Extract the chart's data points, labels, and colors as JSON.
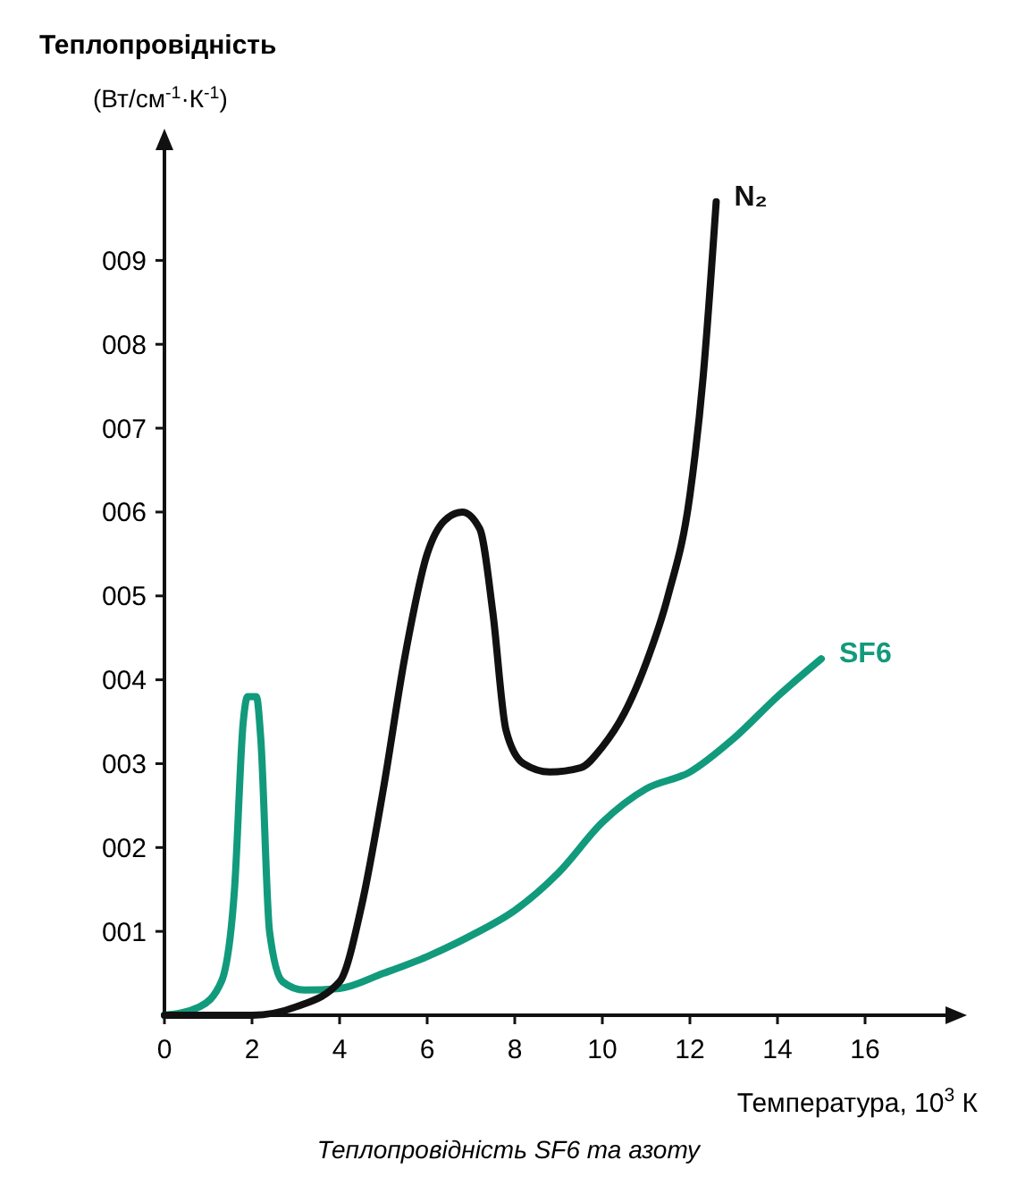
{
  "chart_data": {
    "type": "line",
    "title": "Теплопровідність",
    "ylabel": "(Вт/см$^{-1}$·К$^{-1}$)",
    "xlabel": "Температура, 10$^{3}$ К",
    "annotations": [
      "Теплопровідність SF6 та азоту"
    ],
    "xlim": [
      0,
      18
    ],
    "ylim": [
      0,
      10.4
    ],
    "xticks": [
      0,
      2,
      4,
      6,
      8,
      10,
      12,
      14,
      16
    ],
    "yticks": [
      {
        "value": 1,
        "label": "001"
      },
      {
        "value": 2,
        "label": "002"
      },
      {
        "value": 3,
        "label": "003"
      },
      {
        "value": 4,
        "label": "004"
      },
      {
        "value": 5,
        "label": "005"
      },
      {
        "value": 6,
        "label": "006"
      },
      {
        "value": 7,
        "label": "007"
      },
      {
        "value": 8,
        "label": "008"
      },
      {
        "value": 9,
        "label": "009"
      }
    ],
    "grid": false,
    "marker": "none",
    "line_style": "solid",
    "series": [
      {
        "name": "SF6",
        "color": "#129a7c",
        "x": [
          0,
          0.8,
          1.3,
          1.6,
          1.8,
          1.9,
          2.1,
          2.2,
          2.4,
          2.7,
          3.2,
          4,
          5,
          6,
          7,
          8,
          9,
          10,
          11,
          12,
          13,
          14,
          15
        ],
        "values": [
          0,
          0.1,
          0.4,
          1.5,
          3.5,
          3.8,
          3.8,
          3.3,
          1,
          0.4,
          0.3,
          0.32,
          0.5,
          0.7,
          0.95,
          1.25,
          1.7,
          2.3,
          2.7,
          2.9,
          3.3,
          3.8,
          4.25
        ]
      },
      {
        "name": "N₂",
        "color": "#111111",
        "x": [
          0,
          2,
          3,
          4,
          4.5,
          5,
          5.5,
          6,
          6.4,
          6.8,
          7.2,
          7.5,
          7.8,
          8.2,
          8.8,
          9.5,
          10,
          10.5,
          11,
          11.5,
          12,
          12.3,
          12.6
        ],
        "values": [
          0,
          0,
          0.1,
          0.4,
          1.3,
          2.7,
          4.3,
          5.5,
          5.9,
          6,
          5.8,
          4.8,
          3.4,
          3,
          2.9,
          2.95,
          3.2,
          3.6,
          4.2,
          5,
          6.2,
          7.6,
          9.7
        ]
      }
    ]
  }
}
